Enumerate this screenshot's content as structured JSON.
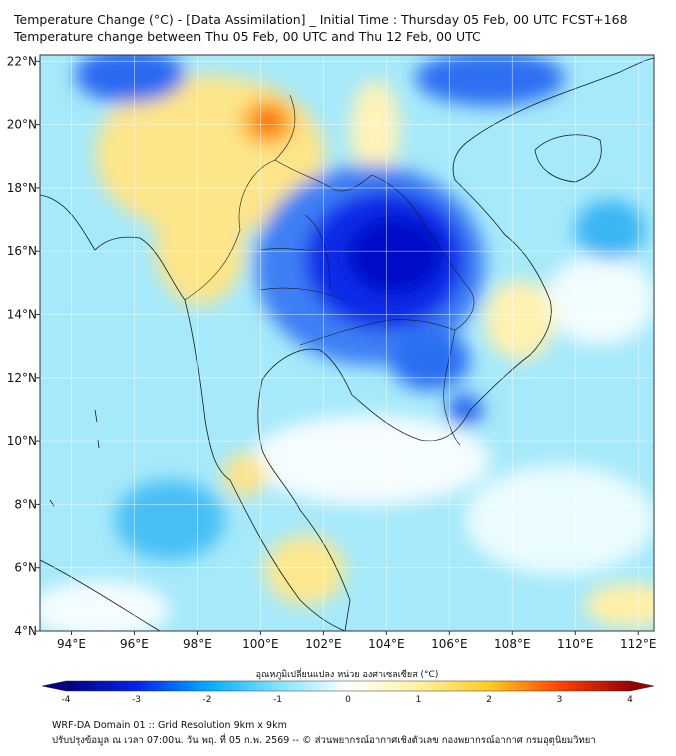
{
  "title": {
    "line1": "Temperature Change (°C) - [Data Assimilation] _ Initial Time : Thursday 05 Feb, 00 UTC FCST+168",
    "line2": "Temperature change between Thu 05 Feb, 00 UTC and Thu 12 Feb, 00 UTC"
  },
  "map": {
    "lon_range": [
      93,
      112.5
    ],
    "lat_range": [
      4,
      22.2
    ],
    "lon_ticks": [
      {
        "value": 94,
        "label": "94°E"
      },
      {
        "value": 96,
        "label": "96°E"
      },
      {
        "value": 98,
        "label": "98°E"
      },
      {
        "value": 100,
        "label": "100°E"
      },
      {
        "value": 102,
        "label": "102°E"
      },
      {
        "value": 104,
        "label": "104°E"
      },
      {
        "value": 106,
        "label": "106°E"
      },
      {
        "value": 108,
        "label": "108°E"
      },
      {
        "value": 110,
        "label": "110°E"
      },
      {
        "value": 112,
        "label": "112°E"
      }
    ],
    "lat_ticks": [
      {
        "value": 4,
        "label": "4°N"
      },
      {
        "value": 6,
        "label": "6°N"
      },
      {
        "value": 8,
        "label": "8°N"
      },
      {
        "value": 10,
        "label": "10°N"
      },
      {
        "value": 12,
        "label": "12°N"
      },
      {
        "value": 14,
        "label": "14°N"
      },
      {
        "value": 16,
        "label": "16°N"
      },
      {
        "value": 18,
        "label": "18°N"
      },
      {
        "value": 20,
        "label": "20°N"
      },
      {
        "value": 22,
        "label": "22°N"
      }
    ],
    "grid": true
  },
  "colorbar": {
    "title": "อุณหภูมิเปลี่ยนแปลง หน่วย องศาเซลเซียส (°C)",
    "min": -4,
    "max": 4,
    "ticks": [
      {
        "value": -4,
        "label": "-4"
      },
      {
        "value": -3,
        "label": "-3"
      },
      {
        "value": -2,
        "label": "-2"
      },
      {
        "value": -1,
        "label": "-1"
      },
      {
        "value": 0,
        "label": "0"
      },
      {
        "value": 1,
        "label": "1"
      },
      {
        "value": 2,
        "label": "2"
      },
      {
        "value": 3,
        "label": "3"
      },
      {
        "value": 4,
        "label": "4"
      }
    ],
    "colors": [
      "#000080",
      "#0022ee",
      "#00aaff",
      "#7fe4ff",
      "#ffffff",
      "#fff3a0",
      "#ffcc22",
      "#ff4400",
      "#990000"
    ]
  },
  "footer": {
    "line1": "WRF-DA Domain 01 :: Grid Resolution 9km x 9km",
    "line2": "ปรับปรุงข้อมูล ณ เวลา 07:00น. วัน พฤ. ที่ 05 ก.พ. 2569 -- © ส่วนพยากรณ์อากาศเชิงตัวเลข กองพยากรณ์อากาศ กรมอุตุนิยมวิทยา"
  }
}
